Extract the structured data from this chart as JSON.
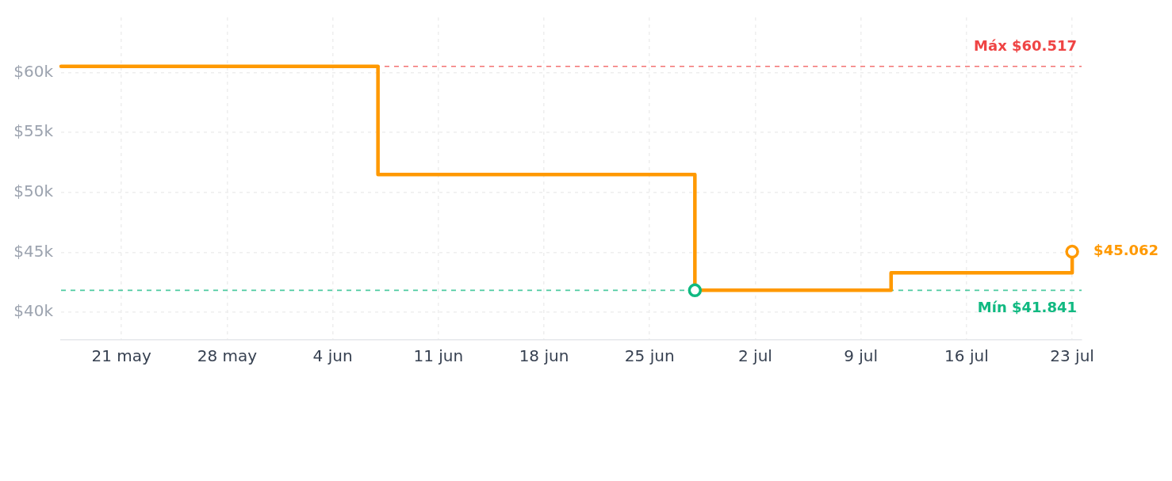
{
  "chart_data": {
    "type": "step",
    "xlim": [
      "--05-17",
      "--07-23T15:00"
    ],
    "ylim": [
      37700,
      64600
    ],
    "xticks": [
      {
        "value": "--05-21",
        "label": "21 may"
      },
      {
        "value": "--05-28",
        "label": "28 may"
      },
      {
        "value": "--06-04",
        "label": "4 jun"
      },
      {
        "value": "--06-11",
        "label": "11 jun"
      },
      {
        "value": "--06-18",
        "label": "18 jun"
      },
      {
        "value": "--06-25",
        "label": "25 jun"
      },
      {
        "value": "--07-02",
        "label": "2 jul"
      },
      {
        "value": "--07-09",
        "label": "9 jul"
      },
      {
        "value": "--07-16",
        "label": "16 jul"
      },
      {
        "value": "--07-23",
        "label": "23 jul"
      }
    ],
    "yticks": [
      {
        "value": 40000,
        "label": "$40k"
      },
      {
        "value": 45000,
        "label": "$45k"
      },
      {
        "value": 50000,
        "label": "$50k"
      },
      {
        "value": 55000,
        "label": "$55k"
      },
      {
        "value": 60000,
        "label": "$60k"
      }
    ],
    "grid": true,
    "legend": false,
    "series": [
      {
        "color": "#ff9900",
        "marker": "none",
        "x": [
          "--05-17",
          "--06-07",
          "--06-28",
          "--07-11",
          "--07-23"
        ],
        "values": [
          60517,
          51500,
          41841,
          43300,
          45062
        ]
      },
      {
        "type": "scatter",
        "color": "#10b981",
        "marker": "circle",
        "x": [
          "--06-28"
        ],
        "values": [
          41841
        ]
      },
      {
        "type": "scatter",
        "color": "#ff9900",
        "marker": "circle",
        "x": [
          "--07-23"
        ],
        "values": [
          45062
        ]
      }
    ],
    "ref_lines": [
      {
        "axis": "y",
        "value": 60517,
        "label": "Máx $60.517",
        "color": "#ef4444",
        "line_style": "dashed"
      },
      {
        "axis": "y",
        "value": 41841,
        "label": "Mín $41.841",
        "color": "#10b981",
        "line_style": "dashed"
      }
    ],
    "annotations": [
      {
        "text": "$45.062",
        "x": "--07-23",
        "y": 45062
      }
    ]
  }
}
